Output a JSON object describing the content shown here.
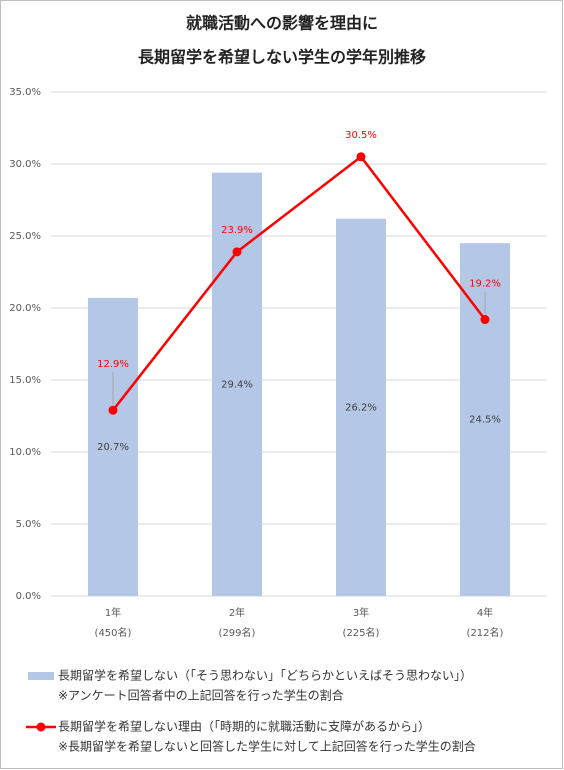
{
  "chart_data": {
    "type": "bar",
    "title": [
      "就職活動への影響を理由に",
      "長期留学を希望しない学生の学年別推移"
    ],
    "categories": [
      [
        "1年",
        "(450名)"
      ],
      [
        "2年",
        "(299名)"
      ],
      [
        "3年",
        "(225名)"
      ],
      [
        "4年",
        "(212名)"
      ]
    ],
    "ylim": [
      0,
      35
    ],
    "yticks": [
      {
        "value": 0,
        "label": "0.0%"
      },
      {
        "value": 5,
        "label": "5.0%"
      },
      {
        "value": 10,
        "label": "10.0%"
      },
      {
        "value": 15,
        "label": "15.0%"
      },
      {
        "value": 20,
        "label": "20.0%"
      },
      {
        "value": 25,
        "label": "25.0%"
      },
      {
        "value": 30,
        "label": "30.0%"
      },
      {
        "value": 35,
        "label": "35.0%"
      }
    ],
    "grid": true,
    "series": [
      {
        "type": "bar",
        "name": "長期留学を希望しない（「そう思わない」「どちらかといえばそう思わない」）",
        "note": "※アンケート回答者中の上記回答を行った学生の割合",
        "color": "#b4c7e7",
        "values": [
          20.7,
          29.4,
          26.2,
          24.5
        ],
        "value_labels": [
          "20.7%",
          "29.4%",
          "26.2%",
          "24.5%"
        ],
        "label_color": "#404040"
      },
      {
        "type": "line",
        "name": "長期留学を希望しない理由（「時期的に就職活動に支障があるから」）",
        "note": "※長期留学を希望しないと回答した学生に対して上記回答を行った学生の割合",
        "color": "#ff0000",
        "values": [
          12.9,
          23.9,
          30.5,
          19.2
        ],
        "value_labels": [
          "12.9%",
          "23.9%",
          "30.5%",
          "19.2%"
        ],
        "label_color": "#ff0000"
      }
    ]
  }
}
